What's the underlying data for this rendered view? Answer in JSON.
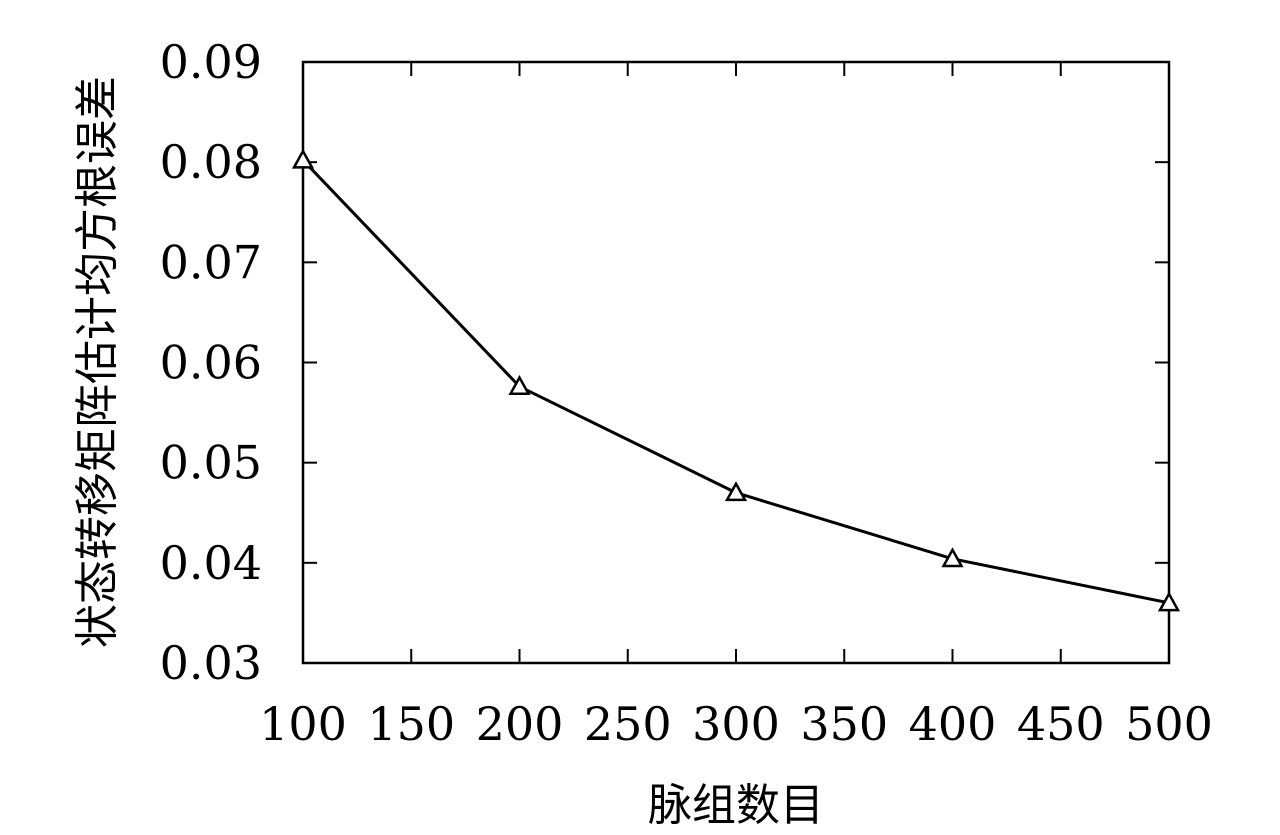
{
  "chart_data": {
    "type": "line",
    "title": "",
    "xlabel": "脉组数目",
    "ylabel": "状态转移矩阵估计均方根误差",
    "xlim": [
      100,
      500
    ],
    "ylim": [
      0.03,
      0.09
    ],
    "x_ticks": [
      100,
      150,
      200,
      250,
      300,
      350,
      400,
      450,
      500
    ],
    "x_tick_labels": [
      "100",
      "150",
      "200",
      "250",
      "300",
      "350",
      "400",
      "450",
      "500"
    ],
    "y_ticks": [
      0.03,
      0.04,
      0.05,
      0.06,
      0.07,
      0.08,
      0.09
    ],
    "y_tick_labels": [
      "0.03",
      "0.04",
      "0.05",
      "0.06",
      "0.07",
      "0.08",
      "0.09"
    ],
    "grid": false,
    "legend": "none",
    "series": [
      {
        "marker": "triangle",
        "color": "#000000",
        "x": [
          100,
          200,
          300,
          400,
          500
        ],
        "y": [
          0.0802,
          0.0576,
          0.047,
          0.0404,
          0.036
        ]
      }
    ]
  }
}
